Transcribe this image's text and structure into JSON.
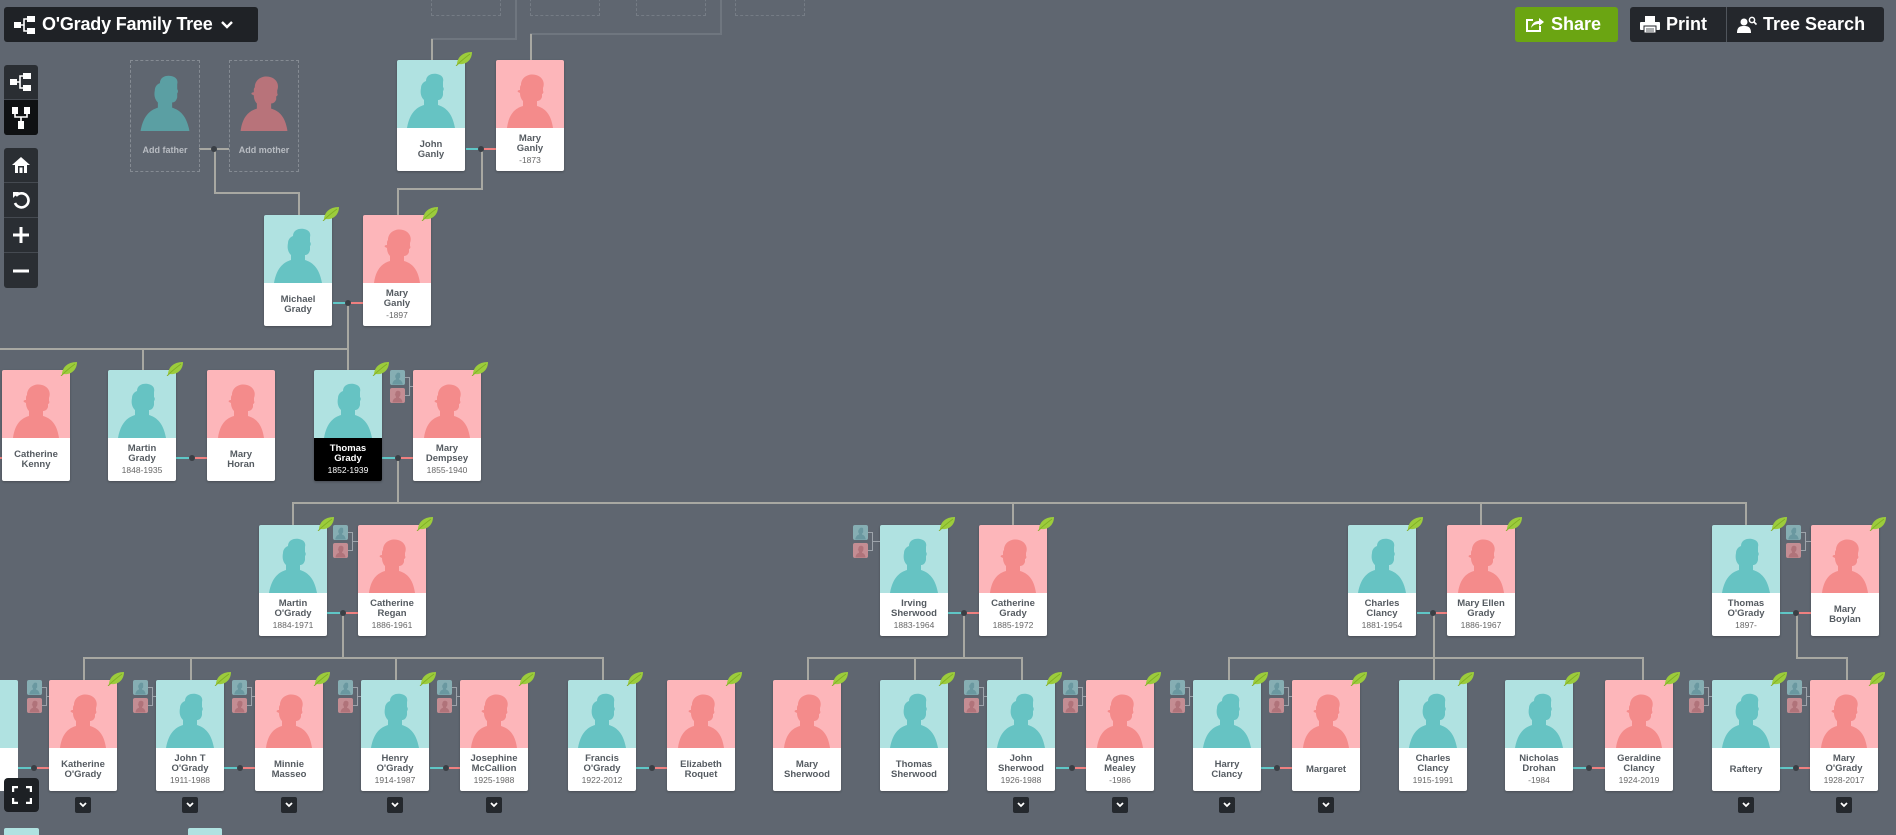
{
  "header": {
    "tree_title": "O'Grady Family Tree",
    "tree_icon": "tree-structure-icon",
    "share_label": "Share",
    "print_label": "Print",
    "search_label": "Tree Search"
  },
  "controls": {
    "view_buttons": [
      "horizontal-tree-view",
      "vertical-tree-view"
    ],
    "nav_buttons": [
      "home",
      "reset",
      "zoom-in",
      "zoom-out"
    ],
    "fullscreen": "fullscreen"
  },
  "colors": {
    "background": "#5f6670",
    "male_photo_bg": "#b0e2e1",
    "male_silhouette": "#66c3c3",
    "female_photo_bg": "#fdb6ba",
    "female_silhouette": "#f48b8b",
    "share_green": "#6ba512",
    "leaf_green": "#9ccc3c",
    "dark_button": "#24272c"
  },
  "placeholders": {
    "father": "Add father",
    "mother": "Add mother"
  },
  "people": {
    "john_ganly": {
      "name1": "John",
      "name2": "Ganly",
      "dates": ""
    },
    "mary_ganly_1873": {
      "name1": "Mary",
      "name2": "Ganly",
      "dates": "-1873"
    },
    "michael_grady": {
      "name1": "Michael",
      "name2": "Grady",
      "dates": ""
    },
    "mary_ganly_1897": {
      "name1": "Mary",
      "name2": "Ganly",
      "dates": "-1897"
    },
    "catherine_kenny": {
      "name1": "Catherine",
      "name2": "Kenny",
      "dates": ""
    },
    "martin_grady": {
      "name1": "Martin",
      "name2": "Grady",
      "dates": "1848-1935"
    },
    "mary_horan": {
      "name1": "Mary",
      "name2": "Horan",
      "dates": ""
    },
    "thomas_grady": {
      "name1": "Thomas",
      "name2": "Grady",
      "dates": "1852-1939"
    },
    "mary_dempsey": {
      "name1": "Mary",
      "name2": "Dempsey",
      "dates": "1855-1940"
    },
    "martin_ogrady": {
      "name1": "Martin",
      "name2": "O'Grady",
      "dates": "1884-1971"
    },
    "catherine_regan": {
      "name1": "Catherine",
      "name2": "Regan",
      "dates": "1886-1961"
    },
    "irving_sherwood": {
      "name1": "Irving",
      "name2": "Sherwood",
      "dates": "1883-1964"
    },
    "catherine_grady": {
      "name1": "Catherine",
      "name2": "Grady",
      "dates": "1885-1972"
    },
    "charles_clancy_1881": {
      "name1": "Charles",
      "name2": "Clancy",
      "dates": "1881-1954"
    },
    "mary_ellen_grady": {
      "name1": "Mary Ellen",
      "name2": "Grady",
      "dates": "1886-1967"
    },
    "thomas_ogrady": {
      "name1": "Thomas",
      "name2": "O'Grady",
      "dates": "1897-"
    },
    "mary_boylan": {
      "name1": "Mary",
      "name2": "Boylan",
      "dates": ""
    },
    "katherine_ogrady": {
      "name1": "Katherine",
      "name2": "O'Grady",
      "dates": ""
    },
    "john_t_ogrady": {
      "name1": "John T",
      "name2": "O'Grady",
      "dates": "1911-1988"
    },
    "minnie_masseo": {
      "name1": "Minnie",
      "name2": "Masseo",
      "dates": ""
    },
    "henry_ogrady": {
      "name1": "Henry",
      "name2": "O'Grady",
      "dates": "1914-1987"
    },
    "josephine_mccallion": {
      "name1": "Josephine",
      "name2": "McCallion",
      "dates": "1925-1988"
    },
    "francis_ogrady": {
      "name1": "Francis",
      "name2": "O'Grady",
      "dates": "1922-2012"
    },
    "elizabeth_roquet": {
      "name1": "Elizabeth",
      "name2": "Roquet",
      "dates": ""
    },
    "mary_sherwood": {
      "name1": "Mary",
      "name2": "Sherwood",
      "dates": ""
    },
    "thomas_sherwood": {
      "name1": "Thomas",
      "name2": "Sherwood",
      "dates": ""
    },
    "john_sherwood": {
      "name1": "John",
      "name2": "Sherwood",
      "dates": "1926-1988"
    },
    "agnes_mealey": {
      "name1": "Agnes",
      "name2": "Mealey",
      "dates": "-1986"
    },
    "harry_clancy": {
      "name1": "Harry",
      "name2": "Clancy",
      "dates": ""
    },
    "margaret": {
      "name1": "Margaret",
      "name2": "",
      "dates": ""
    },
    "charles_clancy_1915": {
      "name1": "Charles",
      "name2": "Clancy",
      "dates": "1915-1991"
    },
    "nicholas_drohan": {
      "name1": "Nicholas",
      "name2": "Drohan",
      "dates": "-1984"
    },
    "geraldine_clancy": {
      "name1": "Geraldine",
      "name2": "Clancy",
      "dates": "1924-2019"
    },
    "raftery": {
      "name1": "Raftery",
      "name2": "",
      "dates": ""
    },
    "mary_ogrady": {
      "name1": "Mary",
      "name2": "O'Grady",
      "dates": "1928-2017"
    }
  },
  "selected_person": "thomas_grady"
}
